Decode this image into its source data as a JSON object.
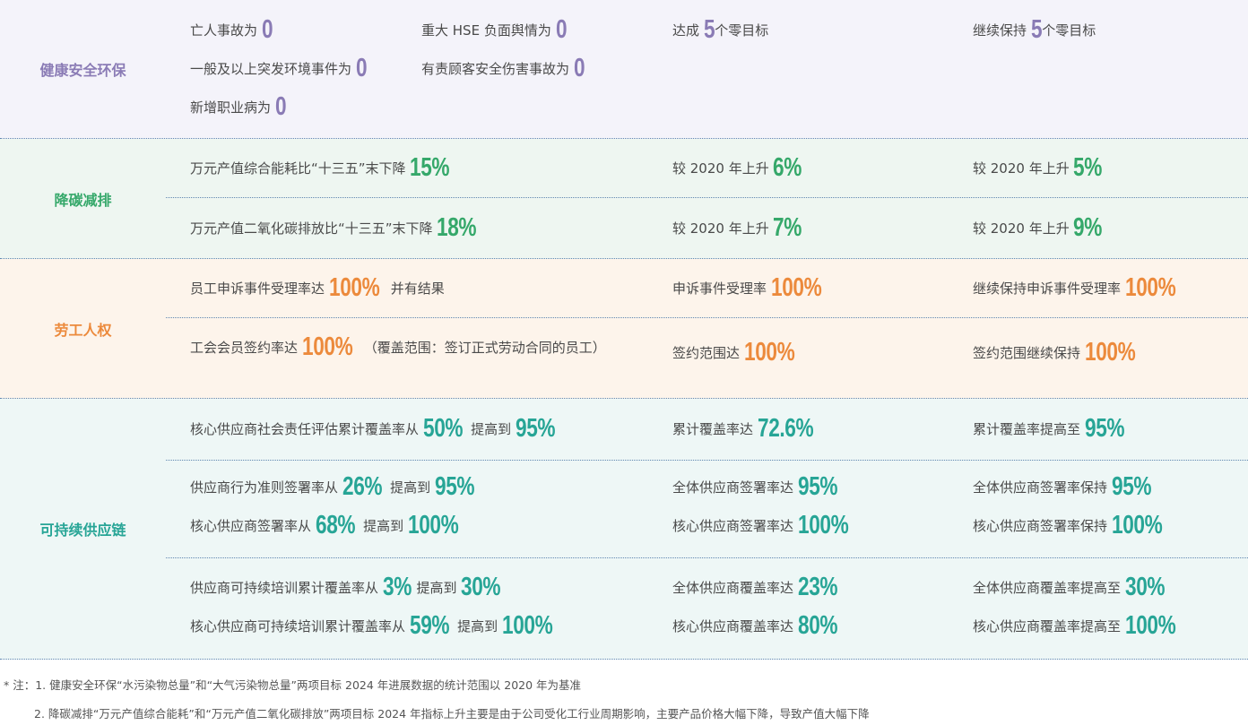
{
  "sections": [
    {
      "label": "健康安全环保",
      "color": "#8a7bb5",
      "bg": "#f4f3fa",
      "rows": [
        {
          "pad": 12,
          "h": 155,
          "grid": [
            [
              {
                "t": "亡人事故为 "
              },
              {
                "t": "0",
                "h": 1
              }
            ],
            [
              {
                "t": "重大 HSE 负面舆情为 "
              },
              {
                "t": "0",
                "h": 1
              }
            ],
            [
              {
                "t": "一般及以上突发环境事件为 "
              },
              {
                "t": "0",
                "h": 1
              }
            ],
            [
              {
                "t": "有责顾客安全伤害事故为 "
              },
              {
                "t": "0",
                "h": 1
              }
            ],
            [
              {
                "t": "新增职业病为 "
              },
              {
                "t": "0",
                "h": 1
              }
            ]
          ],
          "c2": [
            [
              {
                "t": "达成 "
              },
              {
                "t": "5",
                "h": 1
              },
              {
                "t": "  个零目标"
              }
            ]
          ],
          "c3": [
            [
              {
                "t": "继续保持 "
              },
              {
                "t": "5",
                "h": 1
              },
              {
                "t": "  个零目标"
              }
            ]
          ]
        }
      ]
    },
    {
      "label": "降碳减排",
      "color": "#35a86a",
      "bg": "#eef6f1",
      "rows": [
        {
          "pad": 11,
          "h": 67,
          "c1": [
            [
              {
                "t": "万元产值综合能耗比“十三五”末下降 "
              },
              {
                "t": "15%",
                "h": 1
              }
            ]
          ],
          "c2": [
            [
              {
                "t": "较 2020 年上升 "
              },
              {
                "t": "6%",
                "h": 1
              }
            ]
          ],
          "c3": [
            [
              {
                "t": "较 2020 年上升 "
              },
              {
                "t": "5%",
                "h": 1
              }
            ]
          ]
        },
        {
          "pad": 12,
          "h": 68,
          "c1": [
            [
              {
                "t": "万元产值二氧化碳排放比“十三五”末下降 "
              },
              {
                "t": "18%",
                "h": 1
              }
            ]
          ],
          "c2": [
            [
              {
                "t": "较 2020 年上升 "
              },
              {
                "t": "7%",
                "h": 1
              }
            ]
          ],
          "c3": [
            [
              {
                "t": "较 2020 年上升 "
              },
              {
                "t": "9%",
                "h": 1
              }
            ]
          ]
        }
      ]
    },
    {
      "label": "劳工人权",
      "color": "#ec8a3c",
      "bg": "#fdf4eb",
      "rows": [
        {
          "pad": 11,
          "h": 67,
          "c1": [
            [
              {
                "t": "员工申诉事件受理率达 "
              },
              {
                "t": "100%",
                "h": 1
              },
              {
                "t": "  并有结果"
              }
            ]
          ],
          "c2": [
            [
              {
                "t": "申诉事件受理率 "
              },
              {
                "t": "100%",
                "h": 1
              }
            ]
          ],
          "c3": [
            [
              {
                "t": "继续保持申诉事件受理率 "
              },
              {
                "t": "100%",
                "h": 1
              }
            ]
          ]
        },
        {
          "pad": 17,
          "h": 90,
          "wrap": 1,
          "c1": [
            [
              {
                "t": "工会会员签约率达 "
              },
              {
                "t": "100%",
                "h": 1
              },
              {
                "t": "  （覆盖范围：签订正式劳动合同的员工）"
              }
            ]
          ],
          "c2": [
            [
              {
                "t": "签约范围达 "
              },
              {
                "t": "100%",
                "h": 1
              }
            ]
          ],
          "c3": [
            [
              {
                "t": "签约范围继续保持 "
              },
              {
                "t": "100%",
                "h": 1
              }
            ]
          ]
        }
      ]
    },
    {
      "label": "可持续供应链",
      "color": "#27a596",
      "bg": "#eef7f6",
      "rows": [
        {
          "pad": 12,
          "h": 70,
          "c1": [
            [
              {
                "t": "核心供应商社会责任评估累计覆盖率从 "
              },
              {
                "t": "50%",
                "h": 1
              },
              {
                "t": "  提高到 "
              },
              {
                "t": "95%",
                "h": 1
              }
            ]
          ],
          "c2": [
            [
              {
                "t": "累计覆盖率达 "
              },
              {
                "t": "72.6%",
                "h": 1
              }
            ]
          ],
          "c3": [
            [
              {
                "t": "累计覆盖率提高至 "
              },
              {
                "t": "95%",
                "h": 1
              }
            ]
          ]
        },
        {
          "pad": 8,
          "h": 110,
          "c1": [
            [
              {
                "t": "供应商行为准则签署率从 "
              },
              {
                "t": "26%",
                "h": 1
              },
              {
                "t": "  提高到 "
              },
              {
                "t": "95%",
                "h": 1
              }
            ],
            [
              {
                "t": "核心供应商签署率从 "
              },
              {
                "t": "68%",
                "h": 1
              },
              {
                "t": "  提高到 "
              },
              {
                "t": "100%",
                "h": 1
              }
            ]
          ],
          "c2": [
            [
              {
                "t": "全体供应商签署率达 "
              },
              {
                "t": "95%",
                "h": 1
              }
            ],
            [
              {
                "t": "核心供应商签署率达 "
              },
              {
                "t": "100%",
                "h": 1
              }
            ]
          ],
          "c3": [
            [
              {
                "t": "全体供应商签署率保持 "
              },
              {
                "t": "95%",
                "h": 1
              }
            ],
            [
              {
                "t": "核心供应商签署率保持 "
              },
              {
                "t": "100%",
                "h": 1
              }
            ]
          ]
        },
        {
          "pad": 11,
          "h": 113,
          "c1": [
            [
              {
                "t": "供应商可持续培训累计覆盖率从 "
              },
              {
                "t": "3%",
                "h": 1
              },
              {
                "t": "  提高到 "
              },
              {
                "t": "30%",
                "h": 1
              }
            ],
            [
              {
                "t": "核心供应商可持续培训累计覆盖率从 "
              },
              {
                "t": "59%",
                "h": 1
              },
              {
                "t": "  提高到 "
              },
              {
                "t": "100%",
                "h": 1
              }
            ]
          ],
          "c2": [
            [
              {
                "t": "全体供应商覆盖率达 "
              },
              {
                "t": "23%",
                "h": 1
              }
            ],
            [
              {
                "t": "核心供应商覆盖率达 "
              },
              {
                "t": "80%",
                "h": 1
              }
            ]
          ],
          "c3": [
            [
              {
                "t": "全体供应商覆盖率提高至 "
              },
              {
                "t": "30%",
                "h": 1
              }
            ],
            [
              {
                "t": "核心供应商覆盖率提高至 "
              },
              {
                "t": "100%",
                "h": 1
              }
            ]
          ]
        }
      ]
    }
  ],
  "notes": {
    "prefix": "* 注：",
    "items": [
      "1. 健康安全环保“水污染物总量”和“大气污染物总量”两项目标 2024 年进展数据的统计范围以 2020 年为基准",
      "2. 降碳减排“万元产值综合能耗”和“万元产值二氧化碳排放”两项目标 2024 年指标上升主要是由于公司受化工行业周期影响，主要产品价格大幅下降，导致产值大幅下降"
    ]
  }
}
